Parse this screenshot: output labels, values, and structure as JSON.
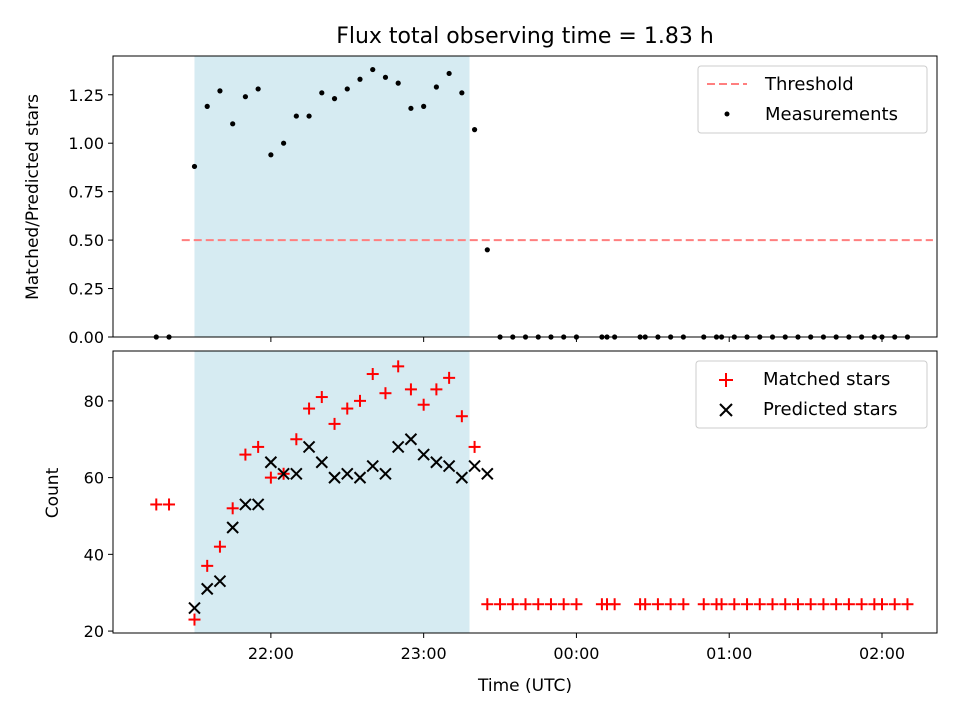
{
  "title": "Flux total observing time = 1.83 h",
  "xlabel": "Time (UTC)",
  "x_ticks": [
    "22:00",
    "23:00",
    "00:00",
    "01:00",
    "02:00"
  ],
  "shaded_region": {
    "start": "21:30",
    "end": "23:18",
    "color": "#add8e6"
  },
  "chart_data": [
    {
      "type": "scatter",
      "panel": "top",
      "ylabel": "Matched/Predicted stars",
      "ylim": [
        0,
        1.45
      ],
      "y_ticks": [
        "0.00",
        "0.25",
        "0.50",
        "0.75",
        "1.00",
        "1.25"
      ],
      "legend": [
        "Threshold",
        "Measurements"
      ],
      "legend_position": "upper right",
      "threshold": {
        "name": "Threshold",
        "value": 0.5,
        "x_range": [
          "21:25",
          "02:20"
        ],
        "color": "#ff7f7f",
        "style": "dashed"
      },
      "series": [
        {
          "name": "Measurements",
          "color": "#000000",
          "marker": "dot",
          "points": [
            [
              "21:15",
              0.0
            ],
            [
              "21:20",
              0.0
            ],
            [
              "21:30",
              0.88
            ],
            [
              "21:35",
              1.19
            ],
            [
              "21:40",
              1.27
            ],
            [
              "21:45",
              1.1
            ],
            [
              "21:50",
              1.24
            ],
            [
              "21:55",
              1.28
            ],
            [
              "22:00",
              0.94
            ],
            [
              "22:05",
              1.0
            ],
            [
              "22:10",
              1.14
            ],
            [
              "22:15",
              1.14
            ],
            [
              "22:20",
              1.26
            ],
            [
              "22:25",
              1.23
            ],
            [
              "22:30",
              1.28
            ],
            [
              "22:35",
              1.33
            ],
            [
              "22:40",
              1.38
            ],
            [
              "22:45",
              1.34
            ],
            [
              "22:50",
              1.31
            ],
            [
              "22:55",
              1.18
            ],
            [
              "23:00",
              1.19
            ],
            [
              "23:05",
              1.29
            ],
            [
              "23:10",
              1.36
            ],
            [
              "23:15",
              1.26
            ],
            [
              "23:20",
              1.07
            ],
            [
              "23:25",
              0.45
            ],
            [
              "23:30",
              0.0
            ],
            [
              "23:35",
              0.0
            ],
            [
              "23:40",
              0.0
            ],
            [
              "23:45",
              0.0
            ],
            [
              "23:50",
              0.0
            ],
            [
              "23:55",
              0.0
            ],
            [
              "00:00",
              0.0
            ],
            [
              "00:10",
              0.0
            ],
            [
              "00:12",
              0.0
            ],
            [
              "00:15",
              0.0
            ],
            [
              "00:25",
              0.0
            ],
            [
              "00:27",
              0.0
            ],
            [
              "00:32",
              0.0
            ],
            [
              "00:37",
              0.0
            ],
            [
              "00:42",
              0.0
            ],
            [
              "00:50",
              0.0
            ],
            [
              "00:55",
              0.0
            ],
            [
              "00:57",
              0.0
            ],
            [
              "01:02",
              0.0
            ],
            [
              "01:07",
              0.0
            ],
            [
              "01:12",
              0.0
            ],
            [
              "01:17",
              0.0
            ],
            [
              "01:22",
              0.0
            ],
            [
              "01:27",
              0.0
            ],
            [
              "01:32",
              0.0
            ],
            [
              "01:37",
              0.0
            ],
            [
              "01:42",
              0.0
            ],
            [
              "01:47",
              0.0
            ],
            [
              "01:52",
              0.0
            ],
            [
              "01:57",
              0.0
            ],
            [
              "02:00",
              0.0
            ],
            [
              "02:05",
              0.0
            ],
            [
              "02:10",
              0.0
            ]
          ]
        }
      ]
    },
    {
      "type": "scatter",
      "panel": "bottom",
      "ylabel": "Count",
      "ylim": [
        19.5,
        93
      ],
      "y_ticks": [
        "20",
        "40",
        "60",
        "80"
      ],
      "legend": [
        "Matched stars",
        "Predicted stars"
      ],
      "legend_position": "upper right",
      "series": [
        {
          "name": "Matched stars",
          "color": "#ff0000",
          "marker": "plus",
          "points": [
            [
              "21:15",
              53
            ],
            [
              "21:20",
              53
            ],
            [
              "21:30",
              23
            ],
            [
              "21:35",
              37
            ],
            [
              "21:40",
              42
            ],
            [
              "21:45",
              52
            ],
            [
              "21:50",
              66
            ],
            [
              "21:55",
              68
            ],
            [
              "22:00",
              60
            ],
            [
              "22:05",
              61
            ],
            [
              "22:10",
              70
            ],
            [
              "22:15",
              78
            ],
            [
              "22:20",
              81
            ],
            [
              "22:25",
              74
            ],
            [
              "22:30",
              78
            ],
            [
              "22:35",
              80
            ],
            [
              "22:40",
              87
            ],
            [
              "22:45",
              82
            ],
            [
              "22:50",
              89
            ],
            [
              "22:55",
              83
            ],
            [
              "23:00",
              79
            ],
            [
              "23:05",
              83
            ],
            [
              "23:10",
              86
            ],
            [
              "23:15",
              76
            ],
            [
              "23:20",
              68
            ],
            [
              "23:25",
              27
            ],
            [
              "23:30",
              27
            ],
            [
              "23:35",
              27
            ],
            [
              "23:40",
              27
            ],
            [
              "23:45",
              27
            ],
            [
              "23:50",
              27
            ],
            [
              "23:55",
              27
            ],
            [
              "00:00",
              27
            ],
            [
              "00:10",
              27
            ],
            [
              "00:12",
              27
            ],
            [
              "00:15",
              27
            ],
            [
              "00:25",
              27
            ],
            [
              "00:27",
              27
            ],
            [
              "00:32",
              27
            ],
            [
              "00:37",
              27
            ],
            [
              "00:42",
              27
            ],
            [
              "00:50",
              27
            ],
            [
              "00:55",
              27
            ],
            [
              "00:57",
              27
            ],
            [
              "01:02",
              27
            ],
            [
              "01:07",
              27
            ],
            [
              "01:12",
              27
            ],
            [
              "01:17",
              27
            ],
            [
              "01:22",
              27
            ],
            [
              "01:27",
              27
            ],
            [
              "01:32",
              27
            ],
            [
              "01:37",
              27
            ],
            [
              "01:42",
              27
            ],
            [
              "01:47",
              27
            ],
            [
              "01:52",
              27
            ],
            [
              "01:57",
              27
            ],
            [
              "02:00",
              27
            ],
            [
              "02:05",
              27
            ],
            [
              "02:10",
              27
            ]
          ]
        },
        {
          "name": "Predicted stars",
          "color": "#000000",
          "marker": "x",
          "points": [
            [
              "21:30",
              26
            ],
            [
              "21:35",
              31
            ],
            [
              "21:40",
              33
            ],
            [
              "21:45",
              47
            ],
            [
              "21:50",
              53
            ],
            [
              "21:55",
              53
            ],
            [
              "22:00",
              64
            ],
            [
              "22:05",
              61
            ],
            [
              "22:10",
              61
            ],
            [
              "22:15",
              68
            ],
            [
              "22:20",
              64
            ],
            [
              "22:25",
              60
            ],
            [
              "22:30",
              61
            ],
            [
              "22:35",
              60
            ],
            [
              "22:40",
              63
            ],
            [
              "22:45",
              61
            ],
            [
              "22:50",
              68
            ],
            [
              "22:55",
              70
            ],
            [
              "23:00",
              66
            ],
            [
              "23:05",
              64
            ],
            [
              "23:10",
              63
            ],
            [
              "23:15",
              60
            ],
            [
              "23:20",
              63
            ],
            [
              "23:25",
              61
            ]
          ]
        }
      ]
    }
  ]
}
